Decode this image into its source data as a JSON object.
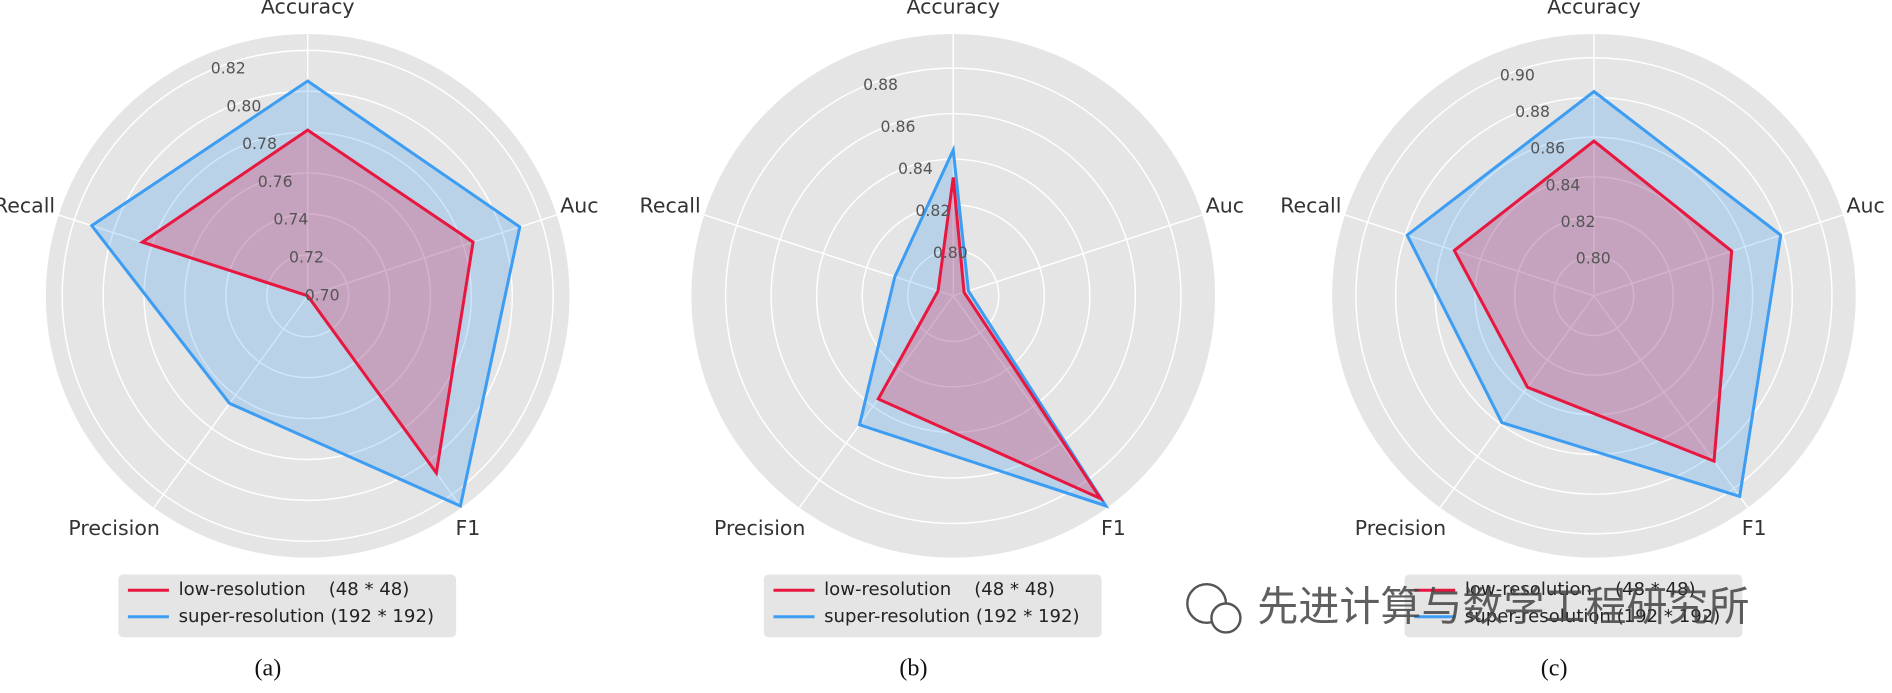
{
  "chart_data": [
    {
      "type": "radar",
      "caption": "(a)",
      "categories": [
        "Accuracy",
        "Auc",
        "F1",
        "Precision",
        "Recall"
      ],
      "rlim": [
        0.7,
        0.828
      ],
      "rticks": [
        {
          "value": 0.7,
          "label": "0.70"
        },
        {
          "value": 0.72,
          "label": "0.72"
        },
        {
          "value": 0.74,
          "label": "0.74"
        },
        {
          "value": 0.76,
          "label": "0.76"
        },
        {
          "value": 0.78,
          "label": "0.78"
        },
        {
          "value": 0.8,
          "label": "0.80"
        },
        {
          "value": 0.82,
          "label": "0.82"
        }
      ],
      "series": [
        {
          "name": "low-resolution    (48 * 48)",
          "color": "#e8173f",
          "values": [
            0.781,
            0.785,
            0.807,
            0.7,
            0.785
          ]
        },
        {
          "name": "super-resolution (192 * 192)",
          "color": "#3d9df3",
          "values": [
            0.805,
            0.809,
            0.827,
            0.765,
            0.811
          ]
        }
      ]
    },
    {
      "type": "radar",
      "caption": "(b)",
      "categories": [
        "Accuracy",
        "Auc",
        "F1",
        "Precision",
        "Recall"
      ],
      "rlim": [
        0.78,
        0.895
      ],
      "rticks": [
        {
          "value": 0.8,
          "label": "0.80"
        },
        0.82,
        0.84,
        0.86,
        0.88
      ],
      "series": [
        {
          "name": "low-resolution    (48 * 48)",
          "color": "#e8173f",
          "values": [
            0.832,
            0.785,
            0.89,
            0.836,
            0.787
          ]
        },
        {
          "name": "super-resolution (192 * 192)",
          "color": "#3d9df3",
          "values": [
            0.844,
            0.787,
            0.894,
            0.85,
            0.807
          ]
        }
      ]
    },
    {
      "type": "radar",
      "caption": "(c)",
      "categories": [
        "Accuracy",
        "Auc",
        "F1",
        "Precision",
        "Recall"
      ],
      "rlim": [
        0.78,
        0.912
      ],
      "rticks": [
        {
          "value": 0.8,
          "label": "0.80"
        },
        0.82,
        0.84,
        0.86,
        0.88,
        {
          "value": 0.9,
          "label": "0.90"
        }
      ],
      "series": [
        {
          "name": "low-resolution    (48 * 48)",
          "color": "#e8173f",
          "values": [
            0.858,
            0.853,
            0.883,
            0.837,
            0.854
          ]
        },
        {
          "name": "super-resolution (192 * 192)",
          "color": "#3d9df3",
          "values": [
            0.883,
            0.879,
            0.905,
            0.859,
            0.879
          ]
        }
      ]
    }
  ],
  "watermark": "先进计算与数学工程研究所"
}
